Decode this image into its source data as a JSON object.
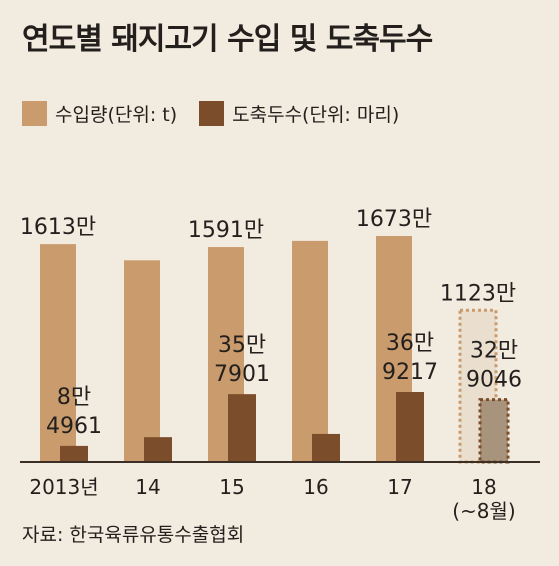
{
  "title": "연도별 돼지고기 수입 및 도축두수",
  "source": "자료: 한국육류유통수출협회",
  "colors": {
    "import": "#c99b6d",
    "slaughter": "#7b4d2b",
    "import_partial_fill": "#eadfcf",
    "slaughter_partial_fill": "#a8947d",
    "baseline": "#3a2e25"
  },
  "chart_data": {
    "type": "bar",
    "categories": [
      "2013년",
      "14",
      "15",
      "16",
      "17",
      "18\n(~8월)"
    ],
    "series": [
      {
        "name": "수입량(단위: t)",
        "values": [
          1613,
          1493,
          1591,
          1637,
          1673,
          1123
        ],
        "unit": "만"
      },
      {
        "name": "도축두수(단위: 마리)",
        "values": [
          84961,
          131000,
          357901,
          148000,
          369217,
          329046
        ]
      }
    ],
    "partial_last_category": true,
    "import_labels": [
      "1613만",
      "",
      "1591만",
      "",
      "1673만",
      "1123만"
    ],
    "slaughter_labels": [
      [
        "8만",
        "4961"
      ],
      [
        "",
        ""
      ],
      [
        "35만",
        "7901"
      ],
      [
        "",
        ""
      ],
      [
        "36만",
        "9217"
      ],
      [
        "32만",
        "9046"
      ]
    ],
    "legend": {
      "placement": "top-left"
    },
    "grid": false
  }
}
